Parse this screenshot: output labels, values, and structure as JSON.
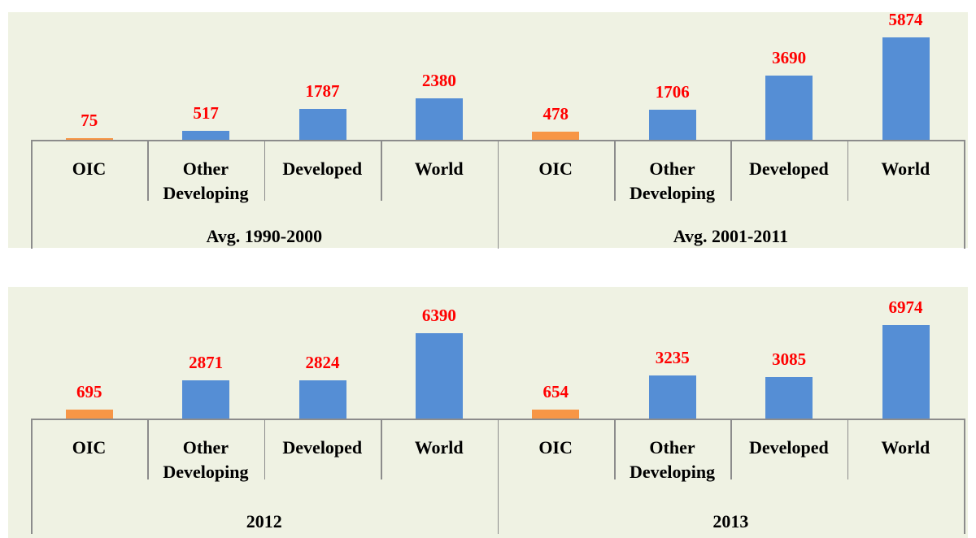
{
  "chart_data": [
    {
      "type": "bar",
      "category_colors": [
        "#f79646",
        "#558ed5",
        "#558ed5",
        "#558ed5"
      ],
      "groups": [
        {
          "name": "Avg. 1990-2000",
          "categories": [
            "OIC",
            "Other Developing",
            "Developed",
            "World"
          ],
          "values": [
            75,
            517,
            1787,
            2380
          ]
        },
        {
          "name": "Avg. 2001-2011",
          "categories": [
            "OIC",
            "Other Developing",
            "Developed",
            "World"
          ],
          "values": [
            478,
            1706,
            3690,
            5874
          ]
        }
      ]
    },
    {
      "type": "bar",
      "category_colors": [
        "#f79646",
        "#558ed5",
        "#558ed5",
        "#558ed5"
      ],
      "groups": [
        {
          "name": "2012",
          "categories": [
            "OIC",
            "Other Developing",
            "Developed",
            "World"
          ],
          "values": [
            695,
            2871,
            2824,
            6390
          ]
        },
        {
          "name": "2013",
          "categories": [
            "OIC",
            "Other Developing",
            "Developed",
            "World"
          ],
          "values": [
            654,
            3235,
            3085,
            6974
          ]
        }
      ]
    }
  ]
}
